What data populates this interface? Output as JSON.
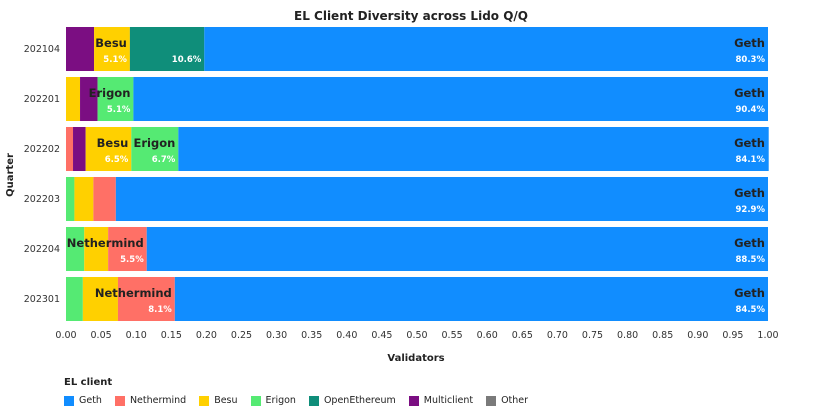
{
  "colors": {
    "Geth": "#118dff",
    "Nethermind": "#ff7066",
    "Besu": "#ffd000",
    "Erigon": "#55ea73",
    "OpenEthereum": "#0f8e7a",
    "Multiclient": "#7b0e82",
    "Other": "#7a7a7a"
  },
  "chart_data": {
    "type": "bar",
    "orientation": "horizontal",
    "stacked": true,
    "title": "EL Client Diversity across Lido Q/Q",
    "xlabel": "Validators",
    "ylabel": "Quarter",
    "xlim": [
      0,
      1
    ],
    "x_ticks": [
      "0.00",
      "0.05",
      "0.10",
      "0.15",
      "0.20",
      "0.25",
      "0.30",
      "0.35",
      "0.40",
      "0.45",
      "0.50",
      "0.55",
      "0.60",
      "0.65",
      "0.70",
      "0.75",
      "0.80",
      "0.85",
      "0.90",
      "0.95",
      "1.00"
    ],
    "categories": [
      "202104",
      "202201",
      "202202",
      "202203",
      "202204",
      "202301"
    ],
    "legend_title": "EL client",
    "legend_position": "bottom-left",
    "legend": [
      "Geth",
      "Nethermind",
      "Besu",
      "Erigon",
      "OpenEthereum",
      "Multiclient",
      "Other"
    ],
    "bars": [
      {
        "quarter": "202104",
        "segments": [
          {
            "client": "Multiclient",
            "value": 0.04
          },
          {
            "client": "Besu",
            "value": 0.051,
            "name_label": "Besu",
            "pct_label": "5.1%"
          },
          {
            "client": "OpenEthereum",
            "value": 0.106,
            "pct_label": "10.6%"
          },
          {
            "client": "Geth",
            "value": 0.803,
            "name_label": "Geth",
            "pct_label": "80.3%"
          }
        ]
      },
      {
        "quarter": "202201",
        "segments": [
          {
            "client": "Besu",
            "value": 0.02
          },
          {
            "client": "Multiclient",
            "value": 0.025
          },
          {
            "client": "Erigon",
            "value": 0.051,
            "name_label": "Erigon",
            "pct_label": "5.1%"
          },
          {
            "client": "Geth",
            "value": 0.904,
            "name_label": "Geth",
            "pct_label": "90.4%"
          }
        ]
      },
      {
        "quarter": "202202",
        "segments": [
          {
            "client": "Nethermind",
            "value": 0.01
          },
          {
            "client": "Multiclient",
            "value": 0.018
          },
          {
            "client": "Besu",
            "value": 0.065,
            "name_label": "Besu",
            "pct_label": "6.5%"
          },
          {
            "client": "Erigon",
            "value": 0.067,
            "name_label": "Erigon",
            "pct_label": "6.7%"
          },
          {
            "client": "Geth",
            "value": 0.841,
            "name_label": "Geth",
            "pct_label": "84.1%"
          }
        ]
      },
      {
        "quarter": "202203",
        "segments": [
          {
            "client": "Erigon",
            "value": 0.012
          },
          {
            "client": "Besu",
            "value": 0.027
          },
          {
            "client": "Nethermind",
            "value": 0.032
          },
          {
            "client": "Geth",
            "value": 0.929,
            "name_label": "Geth",
            "pct_label": "92.9%"
          }
        ]
      },
      {
        "quarter": "202204",
        "segments": [
          {
            "client": "Erigon",
            "value": 0.026
          },
          {
            "client": "Besu",
            "value": 0.034
          },
          {
            "client": "Nethermind",
            "value": 0.055,
            "name_label": "Nethermind",
            "pct_label": "5.5%"
          },
          {
            "client": "Geth",
            "value": 0.885,
            "name_label": "Geth",
            "pct_label": "88.5%"
          }
        ]
      },
      {
        "quarter": "202301",
        "segments": [
          {
            "client": "Erigon",
            "value": 0.024
          },
          {
            "client": "Besu",
            "value": 0.05
          },
          {
            "client": "Nethermind",
            "value": 0.081,
            "name_label": "Nethermind",
            "pct_label": "8.1%"
          },
          {
            "client": "Geth",
            "value": 0.845,
            "name_label": "Geth",
            "pct_label": "84.5%"
          }
        ]
      }
    ]
  }
}
